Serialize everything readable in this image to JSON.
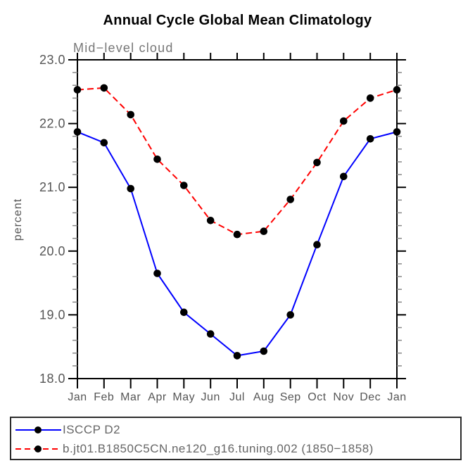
{
  "title": "Annual Cycle Global Mean Climatology",
  "subtitle": "Mid−level cloud",
  "ylabel": "percent",
  "colors": {
    "obs_line": "#0000ff",
    "model_line": "#ff0000",
    "marker": "#000000",
    "axis": "#000000",
    "minor_tick": "#888888",
    "tick_label_text": "#555555",
    "subtitle_text": "#777777",
    "legend_text": "#666666"
  },
  "legend": {
    "items": [
      {
        "label": "ISCCP D2",
        "color": "#0000ff",
        "dashed": false
      },
      {
        "label": "b.jt01.B1850C5CN.ne120_g16.tuning.002 (1850−1858)",
        "color": "#ff0000",
        "dashed": true
      }
    ]
  },
  "chart_data": {
    "type": "line",
    "title": "Annual Cycle Global Mean Climatology",
    "subtitle": "Mid−level cloud",
    "xlabel": "",
    "ylabel": "percent",
    "categories": [
      "Jan",
      "Feb",
      "Mar",
      "Apr",
      "May",
      "Jun",
      "Jul",
      "Aug",
      "Sep",
      "Oct",
      "Nov",
      "Dec",
      "Jan"
    ],
    "ylim": [
      18.0,
      23.0
    ],
    "ytick_step": 1.0,
    "yminor_step": 0.2,
    "grid": false,
    "legend_position": "bottom-left-box",
    "series": [
      {
        "name": "ISCCP D2",
        "color": "#0000ff",
        "style": "solid",
        "marker": "circle",
        "values": [
          21.87,
          21.7,
          20.98,
          19.65,
          19.04,
          18.7,
          18.36,
          18.43,
          19.0,
          20.1,
          21.17,
          21.76,
          21.87
        ]
      },
      {
        "name": "b.jt01.B1850C5CN.ne120_g16.tuning.002 (1850−1858)",
        "color": "#ff0000",
        "style": "dashed",
        "marker": "circle",
        "values": [
          22.53,
          22.56,
          22.14,
          21.44,
          21.03,
          20.48,
          20.26,
          20.31,
          20.81,
          21.39,
          22.04,
          22.4,
          22.53
        ]
      }
    ]
  }
}
